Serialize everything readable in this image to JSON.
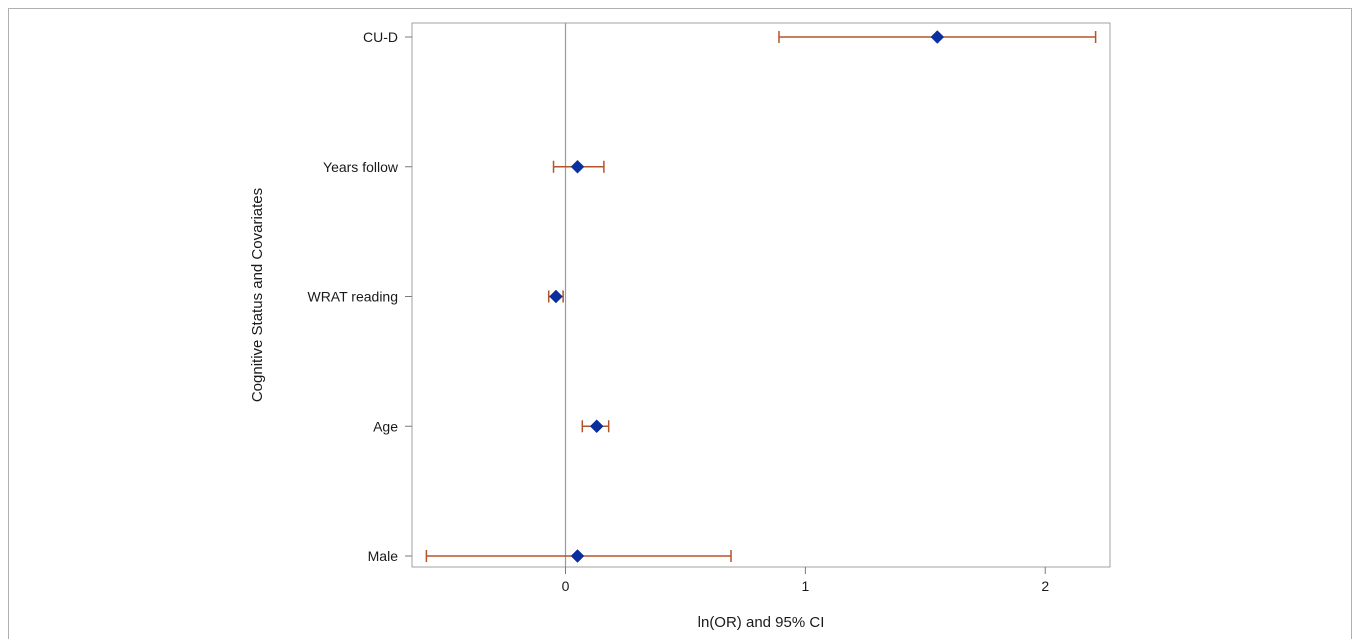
{
  "chart_data": {
    "type": "forest",
    "xlabel": "ln(OR) and 95% CI",
    "ylabel": "Cognitive Status and Covariates",
    "xlim": [
      -0.64,
      2.27
    ],
    "xticks": [
      0,
      1,
      2
    ],
    "reference_line": 0,
    "grid": false,
    "legend": "none",
    "colors": {
      "marker": "#0a2f9e",
      "ci": "#b5532a",
      "reference": "#9a9a9a",
      "frame": "#a0a0a0"
    },
    "rows": [
      {
        "label": "CU-D",
        "estimate": 1.55,
        "lower": 0.89,
        "upper": 2.21
      },
      {
        "label": "Years follow",
        "estimate": 0.05,
        "lower": -0.05,
        "upper": 0.16
      },
      {
        "label": "WRAT reading",
        "estimate": -0.04,
        "lower": -0.07,
        "upper": -0.01
      },
      {
        "label": "Age",
        "estimate": 0.13,
        "lower": 0.07,
        "upper": 0.18
      },
      {
        "label": "Male",
        "estimate": 0.05,
        "lower": -0.58,
        "upper": 0.69
      }
    ]
  }
}
